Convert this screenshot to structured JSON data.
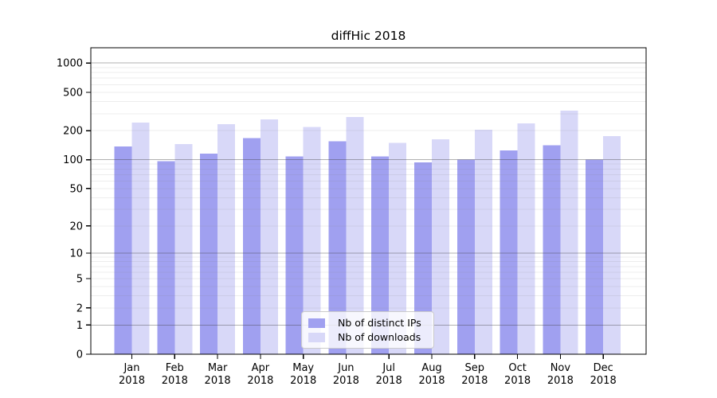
{
  "chart_data": {
    "type": "bar",
    "title": "diffHic 2018",
    "x_categories": [
      "Jan",
      "Feb",
      "Mar",
      "Apr",
      "May",
      "Jun",
      "Jul",
      "Aug",
      "Sep",
      "Oct",
      "Nov",
      "Dec"
    ],
    "x_axis_year": "2018",
    "series": [
      {
        "name": "Nb of distinct IPs",
        "color": "#a0a0f0",
        "values": [
          137,
          97,
          116,
          168,
          108,
          155,
          108,
          94,
          100,
          125,
          142,
          100
        ]
      },
      {
        "name": "Nb of downloads",
        "color": "#d8d8f8",
        "values": [
          242,
          145,
          234,
          262,
          218,
          278,
          150,
          163,
          204,
          238,
          322,
          176
        ]
      }
    ],
    "y_axis": {
      "scale": "log(value+1)",
      "ticks": [
        0,
        1,
        2,
        5,
        10,
        20,
        50,
        100,
        200,
        500,
        1000
      ],
      "major_gridlines": [
        1,
        10,
        100,
        1000
      ],
      "minor_gridlines": [
        2,
        3,
        4,
        5,
        6,
        7,
        8,
        9,
        20,
        30,
        40,
        50,
        60,
        70,
        80,
        90,
        200,
        300,
        400,
        500,
        600,
        700,
        800,
        900
      ],
      "top_value": 1440
    },
    "legend": {
      "position": "bottom-center",
      "items": [
        "Nb of distinct IPs",
        "Nb of downloads"
      ]
    },
    "colors": {
      "grid_major": "#b2b2b2",
      "grid_minor": "#ededed",
      "axis": "#000000",
      "text": "#000000",
      "background": "#ffffff"
    }
  }
}
